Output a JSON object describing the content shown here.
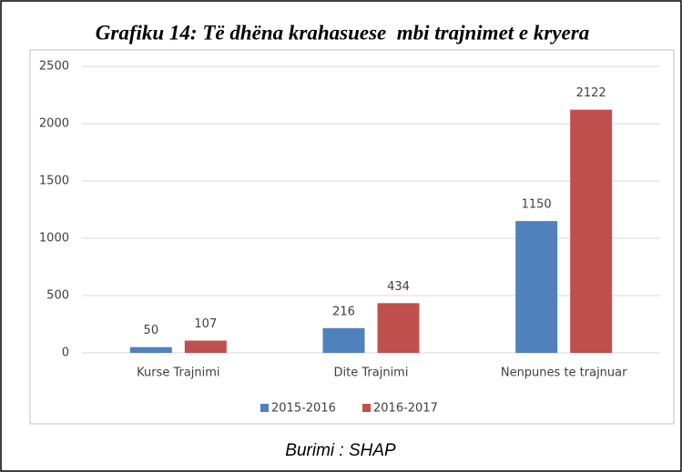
{
  "chart_data": {
    "type": "bar",
    "title": "Grafiku 14: Të dhëna krahasuese  mbi trajnimet e kryera",
    "categories": [
      "Kurse Trajnimi",
      "Dite Trajnimi",
      "Nenpunes te trajnuar"
    ],
    "series": [
      {
        "name": "2015-2016",
        "color": "#4f81bd",
        "values": [
          50,
          216,
          1150
        ]
      },
      {
        "name": "2016-2017",
        "color": "#c0504d",
        "values": [
          107,
          434,
          2122
        ]
      }
    ],
    "ylim": [
      0,
      2500
    ],
    "yticks": [
      0,
      500,
      1000,
      1500,
      2000,
      2500
    ],
    "grid": true,
    "legend": "bottom",
    "source": "Burimi : SHAP"
  }
}
